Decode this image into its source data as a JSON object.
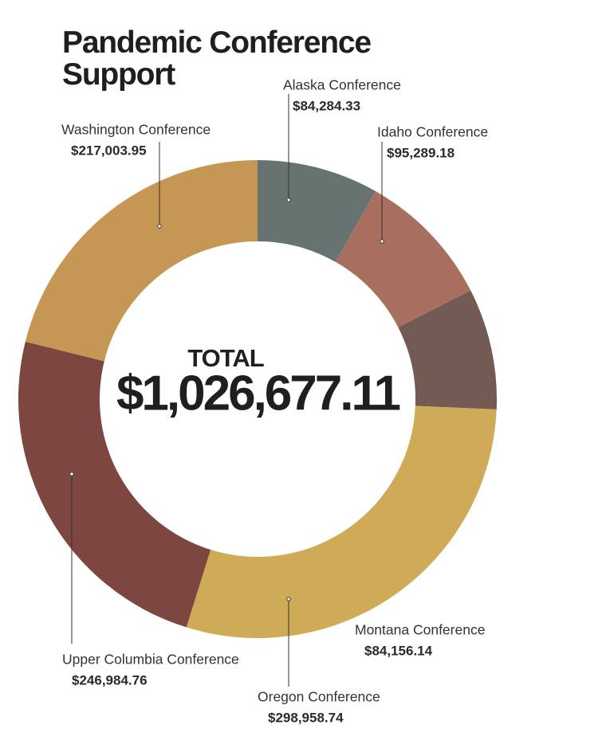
{
  "chart_data": {
    "type": "pie",
    "donut": true,
    "title": "Pandemic Conference Support",
    "categories": [
      "Alaska Conference",
      "Idaho Conference",
      "Montana Conference",
      "Oregon Conference",
      "Upper Columbia Conference",
      "Washington Conference"
    ],
    "values": [
      84284.33,
      95289.18,
      84156.14,
      298958.74,
      246984.76,
      217003.95
    ],
    "value_labels": [
      "$84,284.33",
      "$95,289.18",
      "$84,156.14",
      "$298,958.74",
      "$246,984.76",
      "$217,003.95"
    ],
    "colors": [
      "#667370",
      "#a86e5e",
      "#735a52",
      "#cfab58",
      "#7d4640",
      "#c69655"
    ],
    "annotations": [
      "TOTAL",
      "$1,026,677.11"
    ]
  }
}
